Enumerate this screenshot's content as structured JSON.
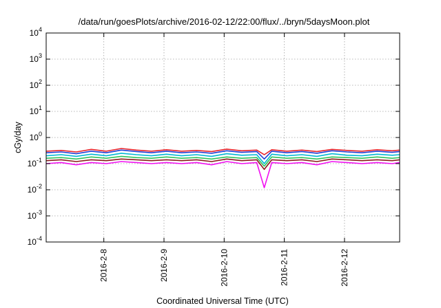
{
  "chart_data": {
    "type": "line",
    "title": "/data/run/goesPlots/archive/2016-02-12/22:00/flux/../bryn/5daysMoon.plot",
    "xlabel": "Coordinated Universal Time (UTC)",
    "ylabel": "cGy/day",
    "yscale": "log",
    "ylim": [
      0.0001,
      10000
    ],
    "xlim": [
      "2016-02-07T01:00",
      "2016-02-12T22:00"
    ],
    "grid": true,
    "legend": "none",
    "x_ticks": [
      "2016-2-8",
      "2016-2-9",
      "2016-2-10",
      "2016-2-11",
      "2016-2-12"
    ],
    "y_ticks": [
      {
        "base": "10",
        "exp": "-4"
      },
      {
        "base": "10",
        "exp": "-3"
      },
      {
        "base": "10",
        "exp": "-2"
      },
      {
        "base": "10",
        "exp": "-1"
      },
      {
        "base": "10",
        "exp": "0"
      },
      {
        "base": "10",
        "exp": "1"
      },
      {
        "base": "10",
        "exp": "2"
      },
      {
        "base": "10",
        "exp": "3"
      },
      {
        "base": "10",
        "exp": "4"
      }
    ],
    "x": [
      "2016-02-07T01:00",
      "2016-02-07T07:00",
      "2016-02-07T13:00",
      "2016-02-07T19:00",
      "2016-02-08T01:00",
      "2016-02-08T07:00",
      "2016-02-08T13:00",
      "2016-02-08T19:00",
      "2016-02-09T01:00",
      "2016-02-09T07:00",
      "2016-02-09T13:00",
      "2016-02-09T19:00",
      "2016-02-10T01:00",
      "2016-02-10T07:00",
      "2016-02-10T13:00",
      "2016-02-10T16:00",
      "2016-02-10T19:00",
      "2016-02-11T01:00",
      "2016-02-11T07:00",
      "2016-02-11T13:00",
      "2016-02-11T19:00",
      "2016-02-12T01:00",
      "2016-02-12T07:00",
      "2016-02-12T13:00",
      "2016-02-12T19:00",
      "2016-02-12T22:00"
    ],
    "series": [
      {
        "color": "#e8222a",
        "values": [
          0.3,
          0.32,
          0.28,
          0.35,
          0.3,
          0.38,
          0.33,
          0.3,
          0.34,
          0.3,
          0.32,
          0.29,
          0.36,
          0.31,
          0.33,
          0.22,
          0.34,
          0.3,
          0.33,
          0.29,
          0.35,
          0.32,
          0.3,
          0.34,
          0.31,
          0.33
        ]
      },
      {
        "color": "#1f3fd6",
        "values": [
          0.26,
          0.28,
          0.24,
          0.3,
          0.26,
          0.33,
          0.29,
          0.26,
          0.3,
          0.26,
          0.28,
          0.25,
          0.31,
          0.27,
          0.29,
          0.15,
          0.3,
          0.26,
          0.29,
          0.25,
          0.31,
          0.28,
          0.26,
          0.3,
          0.27,
          0.29
        ]
      },
      {
        "color": "#00b8d4",
        "values": [
          0.2,
          0.22,
          0.19,
          0.23,
          0.2,
          0.25,
          0.22,
          0.2,
          0.23,
          0.2,
          0.22,
          0.19,
          0.24,
          0.21,
          0.22,
          0.1,
          0.23,
          0.2,
          0.22,
          0.19,
          0.24,
          0.21,
          0.2,
          0.23,
          0.21,
          0.22
        ]
      },
      {
        "color": "#2fc25b",
        "values": [
          0.16,
          0.17,
          0.15,
          0.18,
          0.16,
          0.19,
          0.17,
          0.16,
          0.18,
          0.16,
          0.17,
          0.15,
          0.18,
          0.16,
          0.17,
          0.08,
          0.18,
          0.16,
          0.17,
          0.15,
          0.18,
          0.17,
          0.16,
          0.18,
          0.16,
          0.17
        ]
      },
      {
        "color": "#8b1a1a",
        "values": [
          0.13,
          0.14,
          0.12,
          0.14,
          0.13,
          0.15,
          0.14,
          0.13,
          0.14,
          0.13,
          0.14,
          0.12,
          0.15,
          0.13,
          0.14,
          0.06,
          0.14,
          0.13,
          0.14,
          0.12,
          0.15,
          0.14,
          0.13,
          0.14,
          0.13,
          0.14
        ]
      },
      {
        "color": "#f00ff0",
        "values": [
          0.1,
          0.11,
          0.09,
          0.11,
          0.1,
          0.12,
          0.11,
          0.1,
          0.11,
          0.1,
          0.11,
          0.09,
          0.12,
          0.1,
          0.11,
          0.012,
          0.11,
          0.1,
          0.11,
          0.09,
          0.12,
          0.11,
          0.1,
          0.11,
          0.1,
          0.11
        ]
      }
    ]
  }
}
